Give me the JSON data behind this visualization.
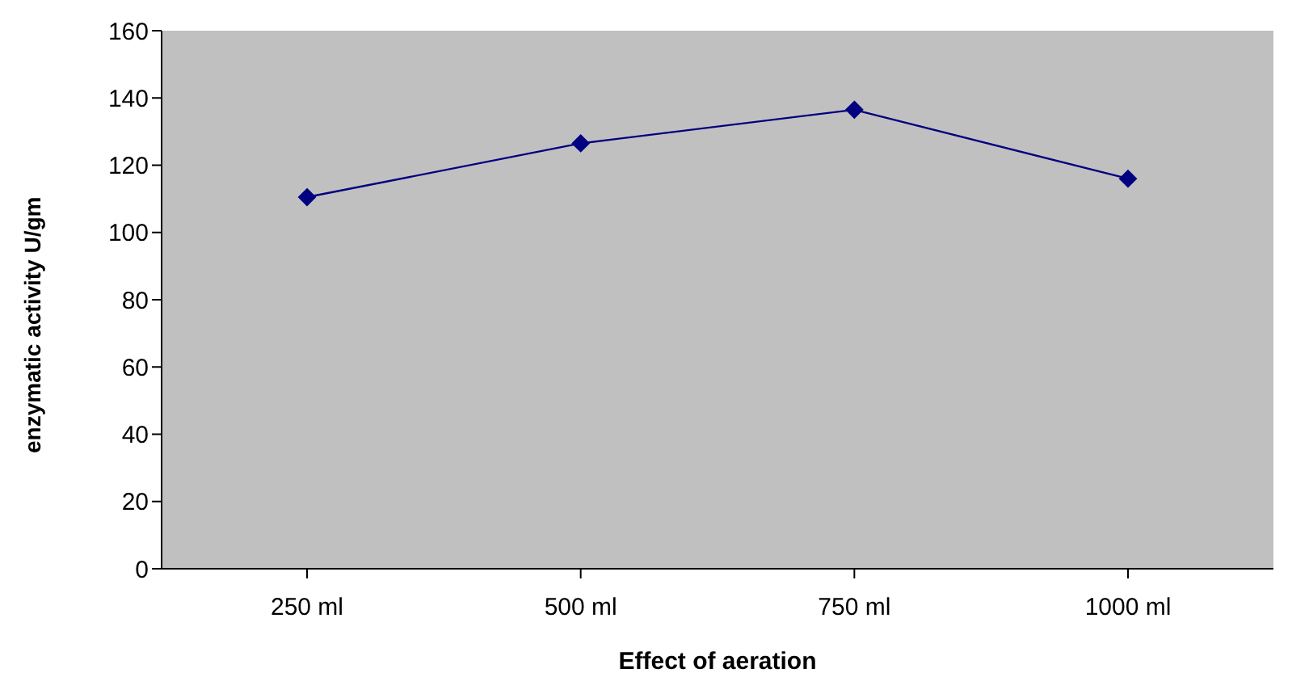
{
  "chart_data": {
    "type": "line",
    "xlabel": "Effect of aeration",
    "ylabel": "enzymatic activity U/gm",
    "categories": [
      "250 ml",
      "500 ml",
      "750 ml",
      "1000 ml"
    ],
    "series": [
      {
        "color": "#000080",
        "values": [
          110.5,
          126.5,
          136.5,
          116
        ]
      }
    ],
    "ylim": [
      0,
      160
    ],
    "yticks": [
      0,
      20,
      40,
      60,
      80,
      100,
      120,
      140,
      160
    ],
    "grid": false,
    "legend": false,
    "marker": "diamond",
    "line_style": "solid"
  }
}
